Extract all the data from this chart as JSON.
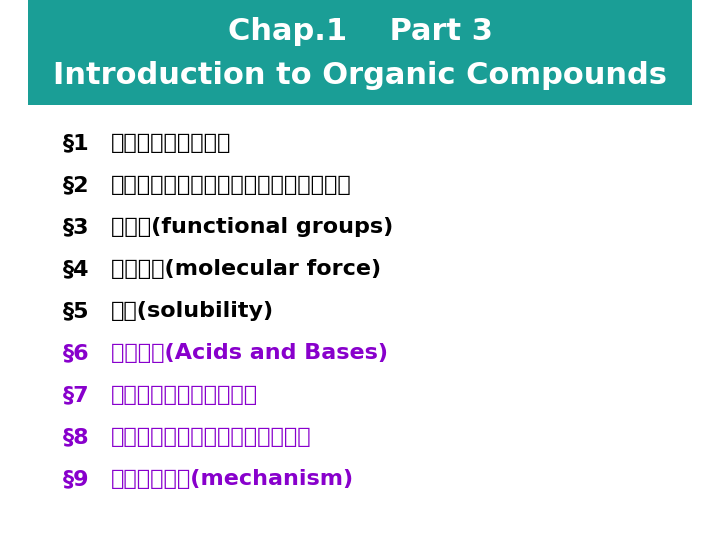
{
  "title_line1": "Chap.1    Part 3",
  "title_line2": "Introduction to Organic Compounds",
  "header_bg": "#1a9e96",
  "header_text_color": "#ffffff",
  "bg_color": "#ffffff",
  "items": [
    {
      "num": "§1",
      "text": "代表的な有機化合物",
      "color": "#000000"
    },
    {
      "num": "§2",
      "text": "アルキル基（有機化合物の部分構造名）",
      "color": "#000000"
    },
    {
      "num": "§3",
      "text": "官能基(functional groups)",
      "color": "#000000"
    },
    {
      "num": "§4",
      "text": "分子間力(molecular force)",
      "color": "#000000"
    },
    {
      "num": "§5",
      "text": "溶解(solubility)",
      "color": "#000000"
    },
    {
      "num": "§6",
      "text": "酸と塩基(Acids and Bases)",
      "color": "#8800cc"
    },
    {
      "num": "§7",
      "text": "酸塩基性と構造との関係",
      "color": "#8800cc"
    },
    {
      "num": "§8",
      "text": "酸塩基反応としての有機化学反応",
      "color": "#8800cc"
    },
    {
      "num": "§9",
      "text": "有機反応機構(mechanism)",
      "color": "#8800cc"
    }
  ],
  "item_fontsize": 16,
  "header_fontsize1": 22,
  "header_fontsize2": 22
}
